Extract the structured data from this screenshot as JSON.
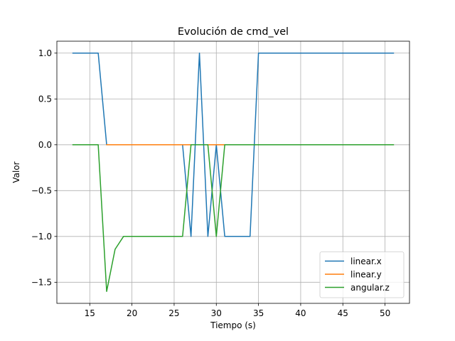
{
  "chart_data": {
    "type": "line",
    "title": "Evolución de cmd_vel",
    "xlabel": "Tiempo (s)",
    "ylabel": "Valor",
    "xlim": [
      11.1,
      52.9
    ],
    "ylim": [
      -1.73,
      1.13
    ],
    "xticks": [
      15,
      20,
      25,
      30,
      35,
      40,
      45,
      50
    ],
    "yticks": [
      1.0,
      0.5,
      0.0,
      -0.5,
      -1.0,
      -1.5
    ],
    "xtick_labels": [
      "15",
      "20",
      "25",
      "30",
      "35",
      "40",
      "45",
      "50"
    ],
    "ytick_labels": [
      "1.0",
      "0.5",
      "0.0",
      "−0.5",
      "−1.0",
      "−1.5"
    ],
    "grid": true,
    "legend_position": "lower-right",
    "series": [
      {
        "name": "linear.x",
        "color": "#1f77b4",
        "x": [
          13,
          16,
          17,
          26,
          27,
          28,
          29,
          30,
          31,
          34,
          35,
          51
        ],
        "y": [
          1,
          1,
          0,
          0,
          -1,
          1,
          -1,
          0,
          -1,
          -1,
          1,
          1
        ]
      },
      {
        "name": "linear.y",
        "color": "#ff7f0e",
        "x": [
          17,
          31
        ],
        "y": [
          0,
          0
        ]
      },
      {
        "name": "angular.z",
        "color": "#2ca02c",
        "x": [
          13,
          16,
          17,
          18,
          19,
          26,
          27,
          28,
          29,
          30,
          31,
          51
        ],
        "y": [
          0,
          0,
          -1.6,
          -1.14,
          -1,
          -1,
          0,
          0,
          0,
          -1,
          0,
          0
        ]
      }
    ]
  }
}
